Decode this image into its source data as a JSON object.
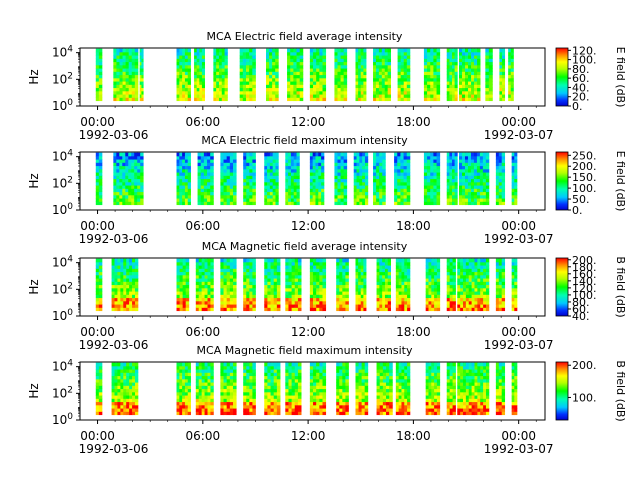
{
  "chart_data": [
    {
      "type": "heatmap",
      "title": "MCA  Electric field average intensity",
      "ylabel": "Hz",
      "y_scale": "log",
      "y_ticks": [
        {
          "base": "10",
          "exp": "0"
        },
        {
          "base": "10",
          "exp": "2"
        },
        {
          "base": "10",
          "exp": "4"
        }
      ],
      "x_ticks": [
        "00:00",
        "06:00",
        "12:00",
        "18:00",
        "00:00"
      ],
      "x_date_start": "1992-03-06",
      "x_date_end": "1992-03-07",
      "x_range_hours": [
        -1,
        25.5
      ],
      "colorbar": {
        "label": "E field (dB)",
        "min": 0,
        "max": 125,
        "ticks": [
          "0.",
          "20.",
          "40.",
          "60.",
          "80.",
          "100.",
          "120."
        ],
        "tick_values": [
          0,
          20,
          40,
          60,
          80,
          100,
          120
        ]
      },
      "base_level": 0.45,
      "seed": 11,
      "data_intervals_hours": [
        [
          -0.1,
          0.25
        ],
        [
          0.9,
          2.3
        ],
        [
          2.4,
          2.6
        ],
        [
          4.5,
          5.3
        ],
        [
          5.5,
          6.1
        ],
        [
          6.6,
          7.4
        ],
        [
          8.1,
          9.0
        ],
        [
          9.6,
          10.3
        ],
        [
          10.8,
          11.7
        ],
        [
          12.1,
          13.0
        ],
        [
          13.5,
          14.2
        ],
        [
          14.7,
          15.3
        ],
        [
          15.7,
          16.7
        ],
        [
          17.1,
          17.8
        ],
        [
          18.6,
          19.5
        ],
        [
          19.9,
          20.5
        ],
        [
          20.6,
          21.8
        ],
        [
          22.1,
          22.5
        ],
        [
          22.9,
          23.2
        ],
        [
          23.4,
          23.7
        ]
      ]
    },
    {
      "type": "heatmap",
      "title": "MCA  Electric field maximum intensity",
      "ylabel": "Hz",
      "y_scale": "log",
      "y_ticks": [
        {
          "base": "10",
          "exp": "0"
        },
        {
          "base": "10",
          "exp": "2"
        },
        {
          "base": "10",
          "exp": "4"
        }
      ],
      "x_ticks": [
        "00:00",
        "06:00",
        "12:00",
        "18:00",
        "00:00"
      ],
      "x_date_start": "1992-03-06",
      "x_date_end": "1992-03-07",
      "x_range_hours": [
        -1,
        25.5
      ],
      "colorbar": {
        "label": "E field (dB)",
        "min": 0,
        "max": 265,
        "ticks": [
          "0.",
          "50.",
          "100.",
          "150.",
          "200.",
          "250."
        ],
        "tick_values": [
          0,
          50,
          100,
          150,
          200,
          250
        ]
      },
      "base_level": 0.3,
      "seed": 23,
      "data_intervals_hours": [
        [
          -0.1,
          0.25
        ],
        [
          0.9,
          2.6
        ],
        [
          4.5,
          5.3
        ],
        [
          5.7,
          6.6
        ],
        [
          7.0,
          7.9
        ],
        [
          8.3,
          9.0
        ],
        [
          9.5,
          10.3
        ],
        [
          10.7,
          11.5
        ],
        [
          12.1,
          12.9
        ],
        [
          13.5,
          14.2
        ],
        [
          14.6,
          15.4
        ],
        [
          15.7,
          16.4
        ],
        [
          16.9,
          17.8
        ],
        [
          18.6,
          19.5
        ],
        [
          19.9,
          20.5
        ],
        [
          20.6,
          22.3
        ],
        [
          22.7,
          23.2
        ],
        [
          23.6,
          23.9
        ]
      ]
    },
    {
      "type": "heatmap",
      "title": "MCA  Magnetic field average intensity",
      "ylabel": "Hz",
      "y_scale": "log",
      "y_ticks": [
        {
          "base": "10",
          "exp": "0"
        },
        {
          "base": "10",
          "exp": "2"
        },
        {
          "base": "10",
          "exp": "4"
        }
      ],
      "x_ticks": [
        "00:00",
        "06:00",
        "12:00",
        "18:00",
        "00:00"
      ],
      "x_date_start": "1992-03-06",
      "x_date_end": "1992-03-07",
      "x_range_hours": [
        -1,
        25.5
      ],
      "colorbar": {
        "label": "B field (dB)",
        "min": 40,
        "max": 205,
        "ticks": [
          "40.",
          "60.",
          "80.",
          "100.",
          "120.",
          "140.",
          "160.",
          "180.",
          "200."
        ],
        "tick_values": [
          40,
          60,
          80,
          100,
          120,
          140,
          160,
          180,
          200
        ]
      },
      "base_level": 0.45,
      "seed": 37,
      "data_intervals_hours": [
        [
          -0.1,
          0.25
        ],
        [
          0.8,
          2.3
        ],
        [
          4.5,
          5.2
        ],
        [
          5.6,
          6.6
        ],
        [
          7.0,
          7.9
        ],
        [
          8.3,
          9.0
        ],
        [
          9.5,
          10.4
        ],
        [
          10.7,
          11.6
        ],
        [
          12.1,
          13.0
        ],
        [
          13.6,
          14.3
        ],
        [
          14.7,
          15.3
        ],
        [
          15.9,
          16.7
        ],
        [
          17.0,
          17.8
        ],
        [
          18.7,
          19.5
        ],
        [
          19.9,
          20.4
        ],
        [
          20.5,
          22.3
        ],
        [
          22.7,
          23.2
        ],
        [
          23.6,
          23.9
        ]
      ]
    },
    {
      "type": "heatmap",
      "title": "MCA  Magnetic field maximum intensity",
      "ylabel": "Hz",
      "y_scale": "log",
      "y_ticks": [
        {
          "base": "10",
          "exp": "0"
        },
        {
          "base": "10",
          "exp": "2"
        },
        {
          "base": "10",
          "exp": "4"
        }
      ],
      "x_ticks": [
        "00:00",
        "06:00",
        "12:00",
        "18:00",
        "00:00"
      ],
      "x_date_start": "1992-03-06",
      "x_date_end": "1992-03-07",
      "x_range_hours": [
        -1,
        25.5
      ],
      "colorbar": {
        "label": "B field (dB)",
        "min": 30,
        "max": 210,
        "ticks": [
          "100.",
          "200."
        ],
        "tick_values": [
          100,
          200
        ]
      },
      "base_level": 0.5,
      "seed": 53,
      "data_intervals_hours": [
        [
          -0.1,
          0.25
        ],
        [
          0.8,
          2.3
        ],
        [
          4.5,
          5.3
        ],
        [
          5.6,
          6.6
        ],
        [
          7.0,
          7.9
        ],
        [
          8.3,
          9.0
        ],
        [
          9.5,
          10.4
        ],
        [
          10.7,
          11.6
        ],
        [
          12.1,
          13.0
        ],
        [
          13.6,
          14.3
        ],
        [
          14.7,
          15.4
        ],
        [
          15.9,
          16.8
        ],
        [
          17.0,
          17.8
        ],
        [
          18.7,
          19.5
        ],
        [
          19.9,
          20.4
        ],
        [
          20.5,
          22.3
        ],
        [
          22.7,
          23.2
        ],
        [
          23.6,
          23.9
        ]
      ]
    }
  ]
}
